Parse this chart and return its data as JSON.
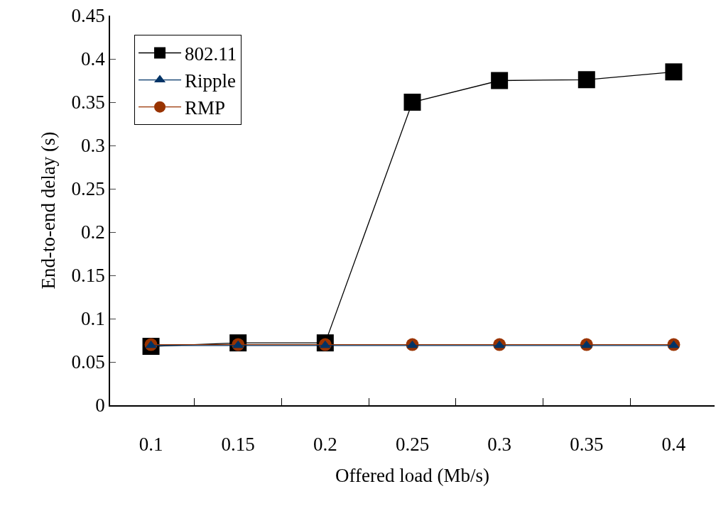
{
  "chart_data": {
    "type": "line",
    "xlabel": "Offered load (Mb/s)",
    "ylabel": "End-to-end delay (s)",
    "categories": [
      "0.1",
      "0.15",
      "0.2",
      "0.25",
      "0.3",
      "0.35",
      "0.4"
    ],
    "ylim": [
      0,
      0.45
    ],
    "yticks": [
      0,
      0.05,
      0.1,
      0.15,
      0.2,
      0.25,
      0.3,
      0.35,
      0.4,
      0.45
    ],
    "legend": "top left",
    "series": [
      {
        "name": "802.11",
        "color": "#000000",
        "marker": "square",
        "values": [
          0.068,
          0.072,
          0.072,
          0.35,
          0.375,
          0.376,
          0.385
        ]
      },
      {
        "name": "Ripple",
        "color": "#003366",
        "marker": "triangle",
        "values": [
          0.069,
          0.069,
          0.069,
          0.069,
          0.069,
          0.069,
          0.069
        ]
      },
      {
        "name": "RMP",
        "color": "#993300",
        "marker": "circle",
        "values": [
          0.07,
          0.07,
          0.07,
          0.07,
          0.07,
          0.07,
          0.07
        ]
      }
    ]
  }
}
